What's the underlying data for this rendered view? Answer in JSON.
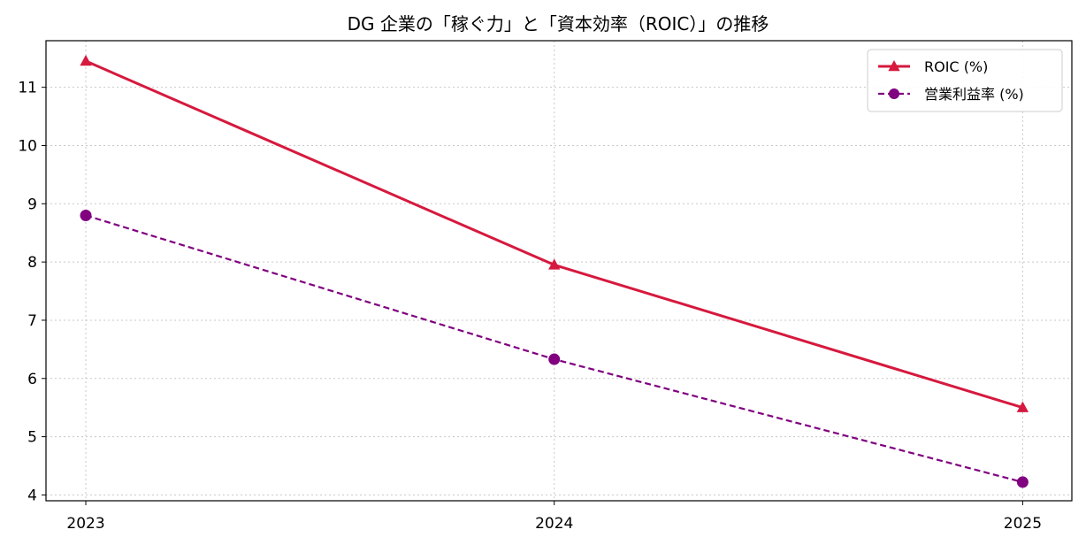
{
  "chart_data": {
    "type": "line",
    "title": "DG 企業の「稼ぐ力」と「資本効率（ROIC）」の推移",
    "xlabel": "",
    "ylabel": "",
    "categories": [
      "2023",
      "2024",
      "2025"
    ],
    "x": [
      2023,
      2024,
      2025
    ],
    "xlim": [
      2022.915,
      2025.105
    ],
    "ylim": [
      3.9,
      11.8
    ],
    "yticks": [
      4,
      5,
      6,
      7,
      8,
      9,
      10,
      11
    ],
    "grid": true,
    "legend_position": "top-right",
    "series": [
      {
        "name": "ROIC (%)",
        "values": [
          11.45,
          7.95,
          5.5
        ],
        "color": "#d6193e",
        "line_style": "solid",
        "marker": "triangle-up"
      },
      {
        "name": "営業利益率 (%)",
        "values": [
          8.8,
          6.33,
          4.22
        ],
        "color": "#800080",
        "line_style": "dashed",
        "marker": "circle"
      }
    ]
  }
}
